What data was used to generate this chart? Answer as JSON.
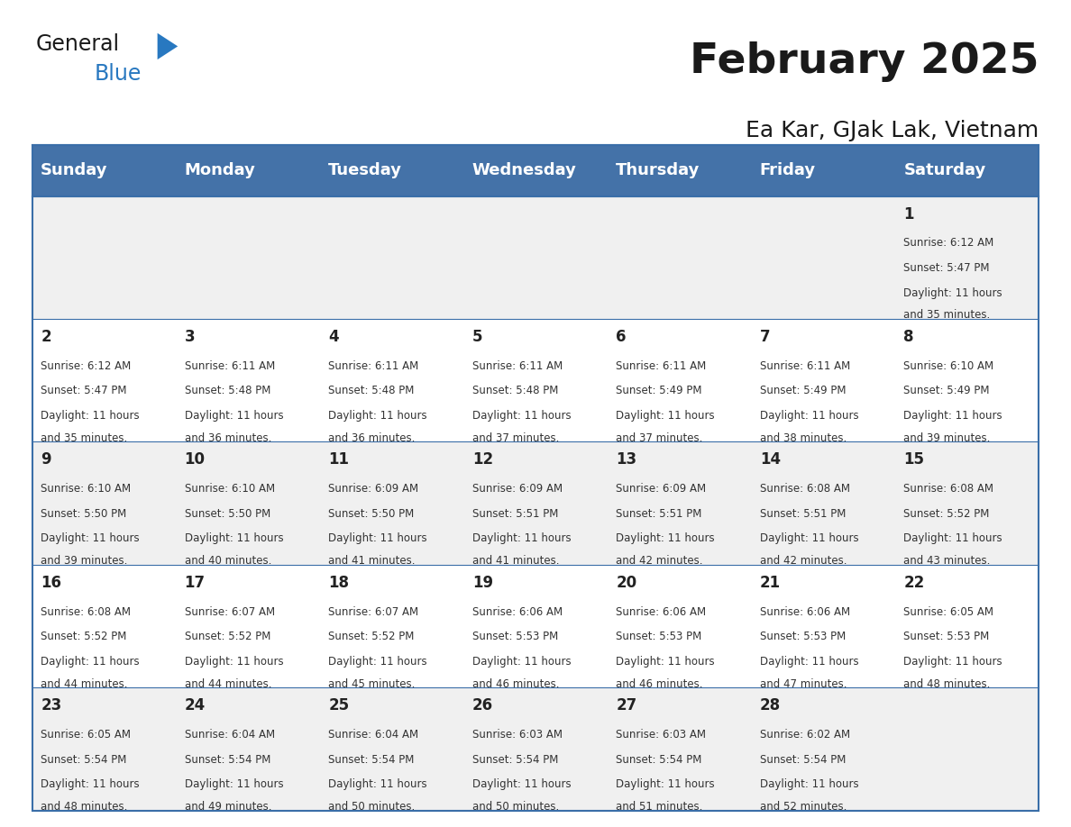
{
  "title": "February 2025",
  "subtitle": "Ea Kar, GJak Lak, Vietnam",
  "header_color": "#4472a8",
  "header_text_color": "#ffffff",
  "cell_bg_odd": "#f0f0f0",
  "cell_bg_even": "#ffffff",
  "day_headers": [
    "Sunday",
    "Monday",
    "Tuesday",
    "Wednesday",
    "Thursday",
    "Friday",
    "Saturday"
  ],
  "title_color": "#1a1a1a",
  "subtitle_color": "#1a1a1a",
  "divider_color": "#3a6ea8",
  "days": [
    {
      "day": 1,
      "col": 6,
      "row": 0,
      "sunrise": "6:12 AM",
      "sunset": "5:47 PM",
      "daylight": "11 hours and 35 minutes."
    },
    {
      "day": 2,
      "col": 0,
      "row": 1,
      "sunrise": "6:12 AM",
      "sunset": "5:47 PM",
      "daylight": "11 hours and 35 minutes."
    },
    {
      "day": 3,
      "col": 1,
      "row": 1,
      "sunrise": "6:11 AM",
      "sunset": "5:48 PM",
      "daylight": "11 hours and 36 minutes."
    },
    {
      "day": 4,
      "col": 2,
      "row": 1,
      "sunrise": "6:11 AM",
      "sunset": "5:48 PM",
      "daylight": "11 hours and 36 minutes."
    },
    {
      "day": 5,
      "col": 3,
      "row": 1,
      "sunrise": "6:11 AM",
      "sunset": "5:48 PM",
      "daylight": "11 hours and 37 minutes."
    },
    {
      "day": 6,
      "col": 4,
      "row": 1,
      "sunrise": "6:11 AM",
      "sunset": "5:49 PM",
      "daylight": "11 hours and 37 minutes."
    },
    {
      "day": 7,
      "col": 5,
      "row": 1,
      "sunrise": "6:11 AM",
      "sunset": "5:49 PM",
      "daylight": "11 hours and 38 minutes."
    },
    {
      "day": 8,
      "col": 6,
      "row": 1,
      "sunrise": "6:10 AM",
      "sunset": "5:49 PM",
      "daylight": "11 hours and 39 minutes."
    },
    {
      "day": 9,
      "col": 0,
      "row": 2,
      "sunrise": "6:10 AM",
      "sunset": "5:50 PM",
      "daylight": "11 hours and 39 minutes."
    },
    {
      "day": 10,
      "col": 1,
      "row": 2,
      "sunrise": "6:10 AM",
      "sunset": "5:50 PM",
      "daylight": "11 hours and 40 minutes."
    },
    {
      "day": 11,
      "col": 2,
      "row": 2,
      "sunrise": "6:09 AM",
      "sunset": "5:50 PM",
      "daylight": "11 hours and 41 minutes."
    },
    {
      "day": 12,
      "col": 3,
      "row": 2,
      "sunrise": "6:09 AM",
      "sunset": "5:51 PM",
      "daylight": "11 hours and 41 minutes."
    },
    {
      "day": 13,
      "col": 4,
      "row": 2,
      "sunrise": "6:09 AM",
      "sunset": "5:51 PM",
      "daylight": "11 hours and 42 minutes."
    },
    {
      "day": 14,
      "col": 5,
      "row": 2,
      "sunrise": "6:08 AM",
      "sunset": "5:51 PM",
      "daylight": "11 hours and 42 minutes."
    },
    {
      "day": 15,
      "col": 6,
      "row": 2,
      "sunrise": "6:08 AM",
      "sunset": "5:52 PM",
      "daylight": "11 hours and 43 minutes."
    },
    {
      "day": 16,
      "col": 0,
      "row": 3,
      "sunrise": "6:08 AM",
      "sunset": "5:52 PM",
      "daylight": "11 hours and 44 minutes."
    },
    {
      "day": 17,
      "col": 1,
      "row": 3,
      "sunrise": "6:07 AM",
      "sunset": "5:52 PM",
      "daylight": "11 hours and 44 minutes."
    },
    {
      "day": 18,
      "col": 2,
      "row": 3,
      "sunrise": "6:07 AM",
      "sunset": "5:52 PM",
      "daylight": "11 hours and 45 minutes."
    },
    {
      "day": 19,
      "col": 3,
      "row": 3,
      "sunrise": "6:06 AM",
      "sunset": "5:53 PM",
      "daylight": "11 hours and 46 minutes."
    },
    {
      "day": 20,
      "col": 4,
      "row": 3,
      "sunrise": "6:06 AM",
      "sunset": "5:53 PM",
      "daylight": "11 hours and 46 minutes."
    },
    {
      "day": 21,
      "col": 5,
      "row": 3,
      "sunrise": "6:06 AM",
      "sunset": "5:53 PM",
      "daylight": "11 hours and 47 minutes."
    },
    {
      "day": 22,
      "col": 6,
      "row": 3,
      "sunrise": "6:05 AM",
      "sunset": "5:53 PM",
      "daylight": "11 hours and 48 minutes."
    },
    {
      "day": 23,
      "col": 0,
      "row": 4,
      "sunrise": "6:05 AM",
      "sunset": "5:54 PM",
      "daylight": "11 hours and 48 minutes."
    },
    {
      "day": 24,
      "col": 1,
      "row": 4,
      "sunrise": "6:04 AM",
      "sunset": "5:54 PM",
      "daylight": "11 hours and 49 minutes."
    },
    {
      "day": 25,
      "col": 2,
      "row": 4,
      "sunrise": "6:04 AM",
      "sunset": "5:54 PM",
      "daylight": "11 hours and 50 minutes."
    },
    {
      "day": 26,
      "col": 3,
      "row": 4,
      "sunrise": "6:03 AM",
      "sunset": "5:54 PM",
      "daylight": "11 hours and 50 minutes."
    },
    {
      "day": 27,
      "col": 4,
      "row": 4,
      "sunrise": "6:03 AM",
      "sunset": "5:54 PM",
      "daylight": "11 hours and 51 minutes."
    },
    {
      "day": 28,
      "col": 5,
      "row": 4,
      "sunrise": "6:02 AM",
      "sunset": "5:54 PM",
      "daylight": "11 hours and 52 minutes."
    }
  ]
}
